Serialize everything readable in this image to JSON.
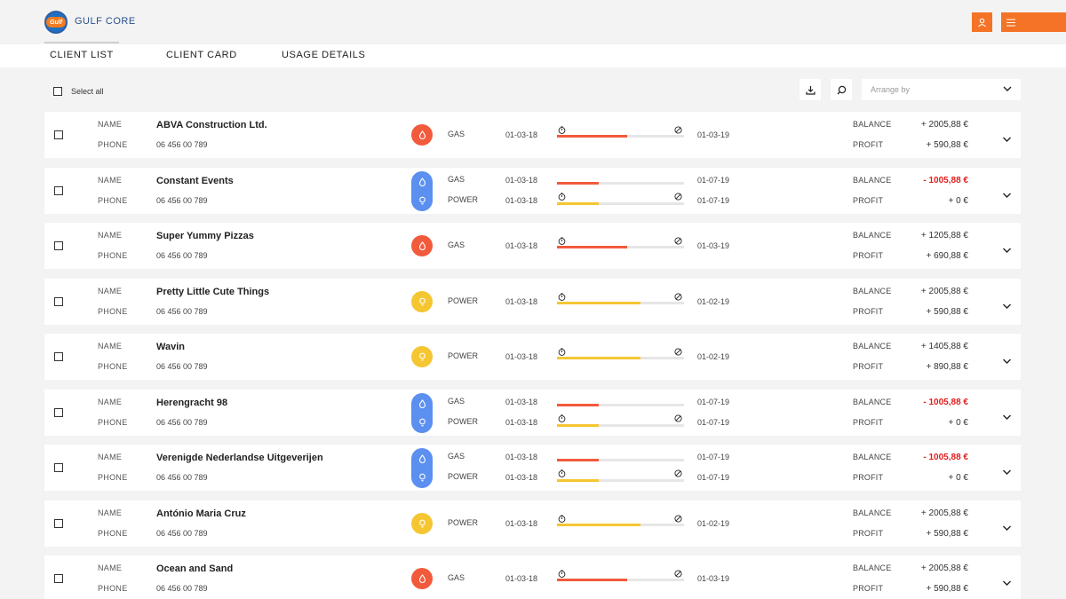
{
  "app": {
    "title": "GULF CORE",
    "logo_text": "Gulf"
  },
  "tabs": [
    {
      "label": "CLIENT LIST",
      "active": true
    },
    {
      "label": "CLIENT CARD",
      "active": false
    },
    {
      "label": "USAGE DETAILS",
      "active": false
    }
  ],
  "toolbar": {
    "select_all_label": "Select all",
    "arrange_placeholder": "Arrange by"
  },
  "labels": {
    "name": "NAME",
    "phone": "PHONE",
    "balance": "BALANCE",
    "profit": "PROFIT"
  },
  "colors": {
    "accent": "#f47326",
    "gas": "#f25a3c",
    "power": "#f5c631",
    "dual": "#5b8ff0",
    "negative": "#e21d1d"
  },
  "clients": [
    {
      "name": "ABVA Construction Ltd.",
      "phone": "06 456 00 789",
      "utilities": [
        {
          "type": "GAS",
          "start": "01-03-18",
          "end": "01-03-19",
          "progress": 0.55
        }
      ],
      "balance": "+ 2005,88 €",
      "balance_negative": false,
      "profit": "+ 590,88 €"
    },
    {
      "name": "Constant Events",
      "phone": "06 456 00 789",
      "utilities": [
        {
          "type": "GAS",
          "start": "01-03-18",
          "end": "01-07-19",
          "progress": 0.33
        },
        {
          "type": "POWER",
          "start": "01-03-18",
          "end": "01-07-19",
          "progress": 0.33
        }
      ],
      "balance": "- 1005,88 €",
      "balance_negative": true,
      "profit": "+ 0 €"
    },
    {
      "name": "Super Yummy Pizzas",
      "phone": "06 456 00 789",
      "utilities": [
        {
          "type": "GAS",
          "start": "01-03-18",
          "end": "01-03-19",
          "progress": 0.55
        }
      ],
      "balance": "+ 1205,88 €",
      "balance_negative": false,
      "profit": "+ 690,88 €"
    },
    {
      "name": "Pretty Little Cute Things",
      "phone": "06 456 00 789",
      "utilities": [
        {
          "type": "POWER",
          "start": "01-03-18",
          "end": "01-02-19",
          "progress": 0.66
        }
      ],
      "balance": "+ 2005,88 €",
      "balance_negative": false,
      "profit": "+ 590,88 €"
    },
    {
      "name": "Wavin",
      "phone": "06 456 00 789",
      "utilities": [
        {
          "type": "POWER",
          "start": "01-03-18",
          "end": "01-02-19",
          "progress": 0.66
        }
      ],
      "balance": "+ 1405,88 €",
      "balance_negative": false,
      "profit": "+ 890,88 €"
    },
    {
      "name": "Herengracht 98",
      "phone": "06 456 00 789",
      "utilities": [
        {
          "type": "GAS",
          "start": "01-03-18",
          "end": "01-07-19",
          "progress": 0.33
        },
        {
          "type": "POWER",
          "start": "01-03-18",
          "end": "01-07-19",
          "progress": 0.33
        }
      ],
      "balance": "- 1005,88 €",
      "balance_negative": true,
      "profit": "+ 0 €"
    },
    {
      "name": "Verenigde Nederlandse Uitgeverijen",
      "phone": "06 456 00 789",
      "utilities": [
        {
          "type": "GAS",
          "start": "01-03-18",
          "end": "01-07-19",
          "progress": 0.33
        },
        {
          "type": "POWER",
          "start": "01-03-18",
          "end": "01-07-19",
          "progress": 0.33
        }
      ],
      "balance": "- 1005,88 €",
      "balance_negative": true,
      "profit": "+ 0 €"
    },
    {
      "name": "António Maria Cruz",
      "phone": "06 456 00 789",
      "utilities": [
        {
          "type": "POWER",
          "start": "01-03-18",
          "end": "01-02-19",
          "progress": 0.66
        }
      ],
      "balance": "+ 2005,88 €",
      "balance_negative": false,
      "profit": "+ 590,88 €"
    },
    {
      "name": "Ocean and Sand",
      "phone": "06 456 00 789",
      "utilities": [
        {
          "type": "GAS",
          "start": "01-03-18",
          "end": "01-03-19",
          "progress": 0.55
        }
      ],
      "balance": "+ 2005,88 €",
      "balance_negative": false,
      "profit": "+ 590,88 €"
    }
  ]
}
